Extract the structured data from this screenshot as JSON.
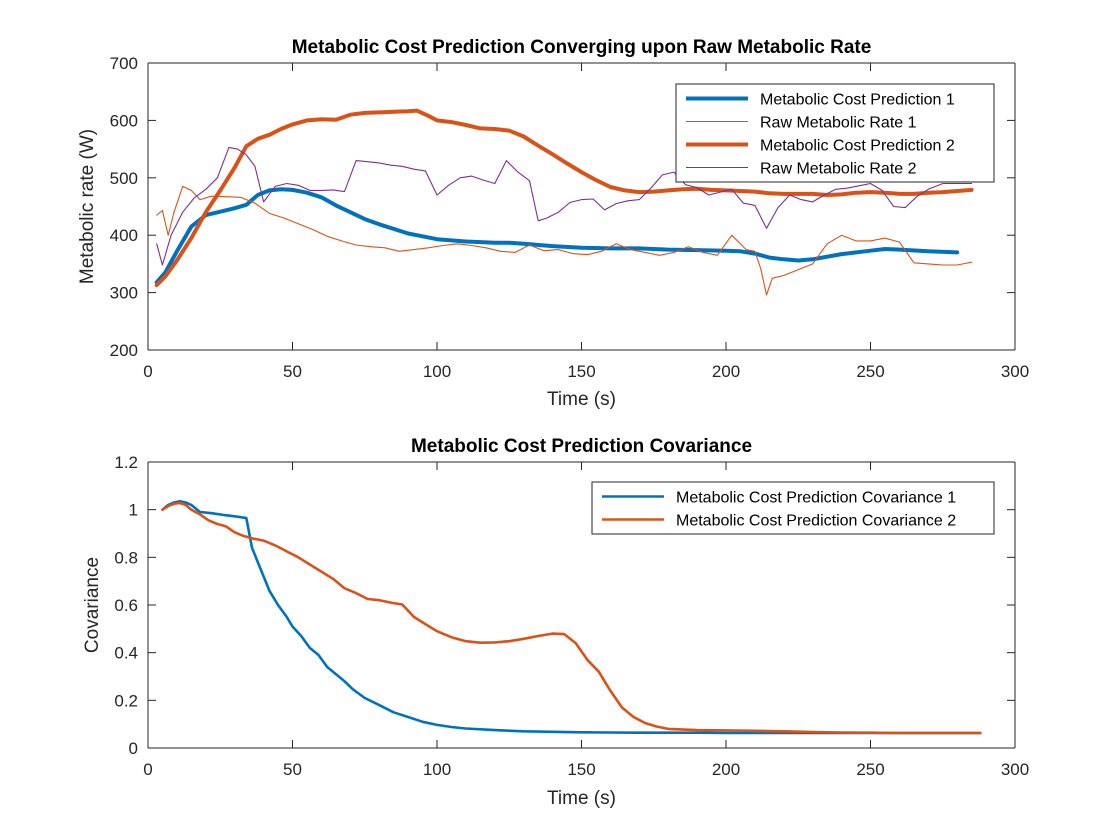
{
  "colors": {
    "blue": "#0072BD",
    "orange": "#D95319",
    "purple": "#7E2F8E",
    "axis": "#262626"
  },
  "chart_data": [
    {
      "type": "line",
      "title": "Metabolic Cost Prediction Converging upon Raw Metabolic Rate",
      "xlabel": "Time (s)",
      "ylabel": "Metabolic rate (W)",
      "xlim": [
        0,
        300
      ],
      "ylim": [
        200,
        700
      ],
      "xticks": [
        0,
        50,
        100,
        150,
        200,
        250,
        300
      ],
      "yticks": [
        200,
        300,
        400,
        500,
        600,
        700
      ],
      "grid": false,
      "legend_position": "top-right",
      "series": [
        {
          "name": "Metabolic Cost Prediction 1",
          "color": "#0072BD",
          "width": "thick",
          "x": [
            3,
            6,
            10,
            15,
            20,
            25,
            30,
            34,
            38,
            42,
            46,
            50,
            55,
            60,
            65,
            70,
            75,
            80,
            85,
            90,
            95,
            100,
            110,
            120,
            125,
            130,
            140,
            150,
            160,
            170,
            180,
            190,
            200,
            205,
            210,
            215,
            220,
            225,
            230,
            240,
            250,
            255,
            260,
            270,
            280
          ],
          "y": [
            318,
            335,
            372,
            415,
            435,
            441,
            447,
            453,
            470,
            478,
            480,
            479,
            474,
            466,
            452,
            440,
            428,
            419,
            411,
            403,
            398,
            393,
            389,
            387,
            387,
            385,
            381,
            378,
            377,
            377,
            375,
            374,
            373,
            372,
            368,
            361,
            358,
            356,
            358,
            367,
            373,
            376,
            375,
            372,
            370
          ]
        },
        {
          "name": "Raw Metabolic Rate 1",
          "color": "#D95319",
          "width": "thin",
          "x": [
            3,
            5,
            7,
            9,
            12,
            15,
            18,
            22,
            27,
            32,
            37,
            42,
            47,
            52,
            57,
            62,
            67,
            72,
            77,
            82,
            87,
            92,
            97,
            102,
            107,
            112,
            117,
            122,
            127,
            132,
            137,
            142,
            147,
            152,
            157,
            162,
            167,
            172,
            177,
            182,
            187,
            192,
            197,
            202,
            207,
            210,
            212,
            214,
            216,
            220,
            225,
            230,
            235,
            240,
            245,
            250,
            255,
            260,
            265,
            270,
            275,
            280,
            285
          ],
          "y": [
            435,
            443,
            400,
            440,
            485,
            478,
            462,
            468,
            467,
            466,
            456,
            438,
            430,
            420,
            410,
            398,
            390,
            383,
            380,
            378,
            372,
            375,
            378,
            382,
            385,
            382,
            378,
            372,
            370,
            383,
            373,
            375,
            368,
            366,
            372,
            385,
            375,
            370,
            365,
            370,
            380,
            370,
            365,
            400,
            375,
            372,
            342,
            296,
            325,
            330,
            340,
            350,
            385,
            400,
            390,
            390,
            395,
            388,
            352,
            350,
            348,
            348,
            353
          ]
        },
        {
          "name": "Metabolic Cost Prediction 2",
          "color": "#D95319",
          "width": "thick",
          "x": [
            3,
            6,
            10,
            15,
            20,
            25,
            30,
            34,
            38,
            42,
            46,
            50,
            55,
            60,
            65,
            70,
            75,
            80,
            85,
            90,
            93,
            97,
            100,
            105,
            110,
            115,
            120,
            125,
            130,
            135,
            140,
            145,
            150,
            155,
            160,
            165,
            170,
            175,
            180,
            185,
            190,
            195,
            200,
            205,
            210,
            215,
            220,
            225,
            230,
            235,
            240,
            245,
            250,
            255,
            260,
            265,
            270,
            275,
            280,
            285
          ],
          "y": [
            313,
            328,
            356,
            395,
            440,
            478,
            518,
            555,
            568,
            575,
            585,
            593,
            600,
            602,
            601,
            610,
            613,
            614,
            615,
            616,
            617,
            608,
            600,
            597,
            592,
            586,
            585,
            582,
            572,
            556,
            541,
            525,
            510,
            496,
            484,
            478,
            475,
            476,
            478,
            480,
            481,
            479,
            478,
            477,
            476,
            473,
            472,
            472,
            472,
            470,
            471,
            474,
            475,
            474,
            472,
            472,
            474,
            475,
            477,
            479
          ]
        },
        {
          "name": "Raw Metabolic Rate 2",
          "color": "#7E2F8E",
          "width": "thin",
          "x": [
            3,
            5,
            8,
            12,
            16,
            20,
            24,
            28,
            31,
            34,
            37,
            40,
            44,
            48,
            52,
            56,
            60,
            64,
            68,
            72,
            76,
            80,
            84,
            88,
            92,
            96,
            100,
            104,
            108,
            112,
            116,
            120,
            124,
            128,
            132,
            135,
            138,
            142,
            146,
            150,
            154,
            158,
            162,
            166,
            170,
            174,
            178,
            182,
            186,
            190,
            194,
            198,
            202,
            206,
            210,
            214,
            218,
            222,
            226,
            230,
            234,
            238,
            242,
            246,
            250,
            254,
            258,
            262,
            266,
            270,
            275,
            280,
            285
          ],
          "y": [
            385,
            348,
            400,
            440,
            465,
            480,
            500,
            553,
            550,
            540,
            520,
            458,
            485,
            490,
            487,
            478,
            478,
            479,
            476,
            530,
            528,
            526,
            522,
            520,
            515,
            512,
            470,
            487,
            500,
            503,
            496,
            490,
            530,
            510,
            495,
            425,
            430,
            440,
            457,
            462,
            463,
            444,
            455,
            460,
            462,
            482,
            505,
            510,
            488,
            483,
            470,
            475,
            480,
            456,
            452,
            412,
            448,
            470,
            462,
            458,
            470,
            480,
            482,
            486,
            490,
            478,
            450,
            448,
            467,
            480,
            490,
            490,
            490
          ]
        }
      ]
    },
    {
      "type": "line",
      "title": "Metabolic Cost Prediction Covariance",
      "xlabel": "Time (s)",
      "ylabel": "Covariance",
      "xlim": [
        0,
        300
      ],
      "ylim": [
        0,
        1.2
      ],
      "xticks": [
        0,
        50,
        100,
        150,
        200,
        250,
        300
      ],
      "yticks": [
        0,
        0.2,
        0.4,
        0.6,
        0.8,
        1,
        1.2
      ],
      "grid": false,
      "legend_position": "top-right",
      "series": [
        {
          "name": "Metabolic Cost Prediction Covariance 1",
          "color": "#0072BD",
          "width": "medium",
          "x": [
            5,
            7,
            9,
            11,
            13,
            15,
            18,
            22,
            26,
            30,
            34,
            36,
            38,
            40,
            42,
            45,
            48,
            50,
            53,
            56,
            59,
            62,
            65,
            68,
            71,
            75,
            80,
            85,
            90,
            95,
            100,
            105,
            110,
            120,
            130,
            140,
            150,
            160,
            170,
            180,
            190,
            200,
            210,
            220,
            230,
            240,
            250,
            260,
            270,
            280,
            288
          ],
          "y": [
            1.0,
            1.02,
            1.03,
            1.035,
            1.03,
            1.02,
            0.99,
            0.985,
            0.978,
            0.972,
            0.965,
            0.84,
            0.78,
            0.72,
            0.66,
            0.6,
            0.55,
            0.51,
            0.47,
            0.42,
            0.39,
            0.34,
            0.31,
            0.28,
            0.245,
            0.21,
            0.18,
            0.15,
            0.13,
            0.11,
            0.097,
            0.088,
            0.082,
            0.075,
            0.07,
            0.068,
            0.066,
            0.065,
            0.064,
            0.064,
            0.064,
            0.063,
            0.063,
            0.063,
            0.063,
            0.063,
            0.063,
            0.063,
            0.063,
            0.063,
            0.063
          ]
        },
        {
          "name": "Metabolic Cost Prediction Covariance 2",
          "color": "#D95319",
          "width": "medium",
          "x": [
            5,
            7,
            9,
            11,
            13,
            15,
            18,
            21,
            24,
            27,
            30,
            33,
            36,
            40,
            44,
            48,
            52,
            56,
            60,
            64,
            68,
            72,
            76,
            80,
            84,
            88,
            92,
            96,
            100,
            105,
            110,
            115,
            120,
            125,
            130,
            135,
            140,
            144,
            148,
            152,
            156,
            160,
            164,
            168,
            172,
            176,
            180,
            190,
            200,
            210,
            220,
            230,
            240,
            250,
            260,
            270,
            280,
            288
          ],
          "y": [
            1.0,
            1.015,
            1.025,
            1.028,
            1.02,
            1.0,
            0.98,
            0.955,
            0.94,
            0.93,
            0.905,
            0.89,
            0.88,
            0.87,
            0.85,
            0.825,
            0.8,
            0.77,
            0.74,
            0.71,
            0.67,
            0.65,
            0.625,
            0.62,
            0.61,
            0.602,
            0.55,
            0.52,
            0.49,
            0.465,
            0.448,
            0.442,
            0.443,
            0.448,
            0.458,
            0.47,
            0.48,
            0.478,
            0.44,
            0.37,
            0.32,
            0.24,
            0.17,
            0.13,
            0.105,
            0.09,
            0.08,
            0.075,
            0.074,
            0.072,
            0.07,
            0.067,
            0.065,
            0.064,
            0.063,
            0.063,
            0.063,
            0.063
          ]
        }
      ]
    }
  ]
}
